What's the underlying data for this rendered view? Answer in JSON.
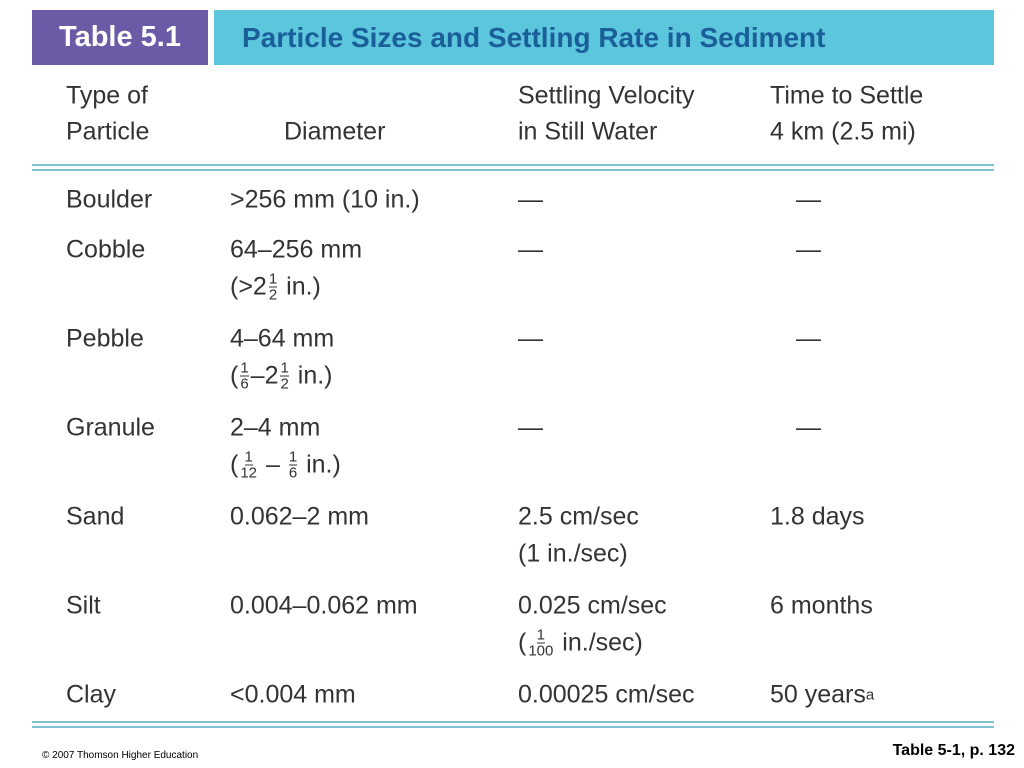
{
  "header": {
    "label": "Table 5.1",
    "title": "Particle Sizes and Settling Rate in Sediment"
  },
  "table": {
    "columns": [
      [
        "Type of",
        "Particle"
      ],
      [
        "Diameter"
      ],
      [
        "Settling Velocity",
        "in Still Water"
      ],
      [
        "Time to Settle",
        "4 km (2.5 mi)"
      ]
    ],
    "rows": [
      [
        [
          "Boulder"
        ],
        [
          ">256 mm (10 in.)"
        ],
        [
          "—"
        ],
        [
          "—"
        ]
      ],
      [
        [
          "Cobble"
        ],
        [
          "64–256 mm",
          [
            "(>2",
            {
              "num": "1",
              "den": "2"
            },
            " in.)"
          ]
        ],
        [
          "—"
        ],
        [
          "—"
        ]
      ],
      [
        [
          "Pebble"
        ],
        [
          "4–64 mm",
          [
            "(",
            {
              "num": "1",
              "den": "6"
            },
            "–2",
            {
              "num": "1",
              "den": "2"
            },
            " in.)"
          ]
        ],
        [
          "—"
        ],
        [
          "—"
        ]
      ],
      [
        [
          "Granule"
        ],
        [
          "2–4 mm",
          [
            "(",
            {
              "num": "1",
              "den": "12"
            },
            " – ",
            {
              "num": "1",
              "den": "6"
            },
            " in.)"
          ]
        ],
        [
          "—"
        ],
        [
          "—"
        ]
      ],
      [
        [
          "Sand"
        ],
        [
          "0.062–2 mm"
        ],
        [
          "2.5 cm/sec",
          "(1 in./sec)"
        ],
        [
          "1.8 days"
        ]
      ],
      [
        [
          "Silt"
        ],
        [
          "0.004–0.062 mm"
        ],
        [
          "0.025 cm/sec",
          [
            "(",
            {
              "num": "1",
              "den": "100"
            },
            " in./sec)"
          ]
        ],
        [
          "6 months"
        ]
      ],
      [
        [
          "Clay"
        ],
        [
          "<0.004 mm"
        ],
        [
          "0.00025 cm/sec"
        ],
        [
          [
            "50 years",
            {
              "sup": "a"
            }
          ]
        ]
      ]
    ]
  },
  "footer": {
    "copyright": "© 2007 Thomson Higher Education",
    "reference": "Table 5-1, p. 132"
  }
}
